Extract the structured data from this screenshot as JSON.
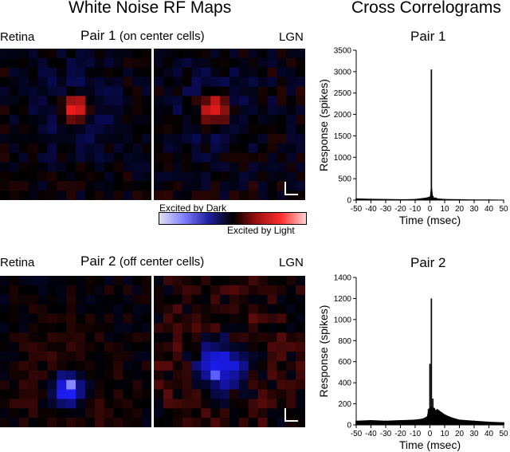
{
  "headers": {
    "left": "White Noise RF Maps",
    "right": "Cross Correlograms"
  },
  "pair1": {
    "retina_label": "Retina",
    "title": "Pair 1",
    "subtitle": "(on center cells)",
    "lgn_label": "LGN",
    "chart_title": "Pair 1"
  },
  "pair2": {
    "retina_label": "Retina",
    "title": "Pair 2",
    "subtitle": "(off center cells)",
    "lgn_label": "LGN",
    "chart_title": "Pair 2"
  },
  "colorbar": {
    "dark_label": "Excited by Dark",
    "light_label": "Excited by Light",
    "colors": [
      "#e0e0f0",
      "#8080ff",
      "#2020a0",
      "#000000",
      "#a01010",
      "#ff3030",
      "#ffd0d0"
    ]
  },
  "rf_maps": {
    "p1_retina": {
      "center": [
        0.5,
        0.4
      ],
      "sign": "on",
      "peak": 1.0,
      "sigma": 0.07,
      "surround": 0.25,
      "noise": 0.12,
      "seed": 11
    },
    "p1_lgn": {
      "center": [
        0.4,
        0.4
      ],
      "sign": "on",
      "peak": 1.0,
      "sigma": 0.07,
      "surround": 0.22,
      "noise": 0.14,
      "seed": 23
    },
    "p2_retina": {
      "center": [
        0.45,
        0.75
      ],
      "sign": "off",
      "peak": 1.0,
      "sigma": 0.08,
      "surround": 0.15,
      "noise": 0.1,
      "seed": 37
    },
    "p2_lgn": {
      "center": [
        0.45,
        0.6
      ],
      "sign": "off",
      "peak": 1.0,
      "sigma": 0.12,
      "surround": 0.2,
      "noise": 0.16,
      "seed": 51
    }
  },
  "chart_data": [
    {
      "type": "bar",
      "title": "Pair 1",
      "xlabel": "Time (msec)",
      "ylabel": "Response (spikes)",
      "xlim": [
        -50,
        50
      ],
      "ylim": [
        0,
        3500
      ],
      "xticks": [
        -50,
        -40,
        -30,
        -20,
        -10,
        0,
        10,
        20,
        30,
        40,
        50
      ],
      "yticks": [
        0,
        500,
        1000,
        1500,
        2000,
        2500,
        3000,
        3500
      ],
      "x": [
        -50,
        -40,
        -30,
        -20,
        -10,
        -2,
        -1,
        0,
        1,
        2,
        3,
        4,
        5,
        10,
        20,
        30,
        40,
        50
      ],
      "values": [
        40,
        30,
        25,
        20,
        25,
        60,
        70,
        80,
        3050,
        100,
        50,
        60,
        40,
        25,
        20,
        15,
        15,
        10
      ]
    },
    {
      "type": "bar",
      "title": "Pair 2",
      "xlabel": "Time (msec)",
      "ylabel": "Response (spikes)",
      "xlim": [
        -50,
        50
      ],
      "ylim": [
        0,
        1400
      ],
      "xticks": [
        -50,
        -40,
        -30,
        -20,
        -10,
        0,
        10,
        20,
        30,
        40,
        50
      ],
      "yticks": [
        0,
        200,
        400,
        600,
        800,
        1000,
        1200,
        1400
      ],
      "x": [
        -50,
        -40,
        -30,
        -20,
        -10,
        -5,
        -2,
        -1,
        0,
        1,
        2,
        3,
        4,
        5,
        6,
        8,
        10,
        15,
        20,
        30,
        40,
        50
      ],
      "values": [
        40,
        45,
        40,
        45,
        50,
        60,
        80,
        150,
        580,
        1200,
        250,
        160,
        140,
        150,
        140,
        120,
        100,
        70,
        50,
        40,
        30,
        25
      ]
    }
  ]
}
